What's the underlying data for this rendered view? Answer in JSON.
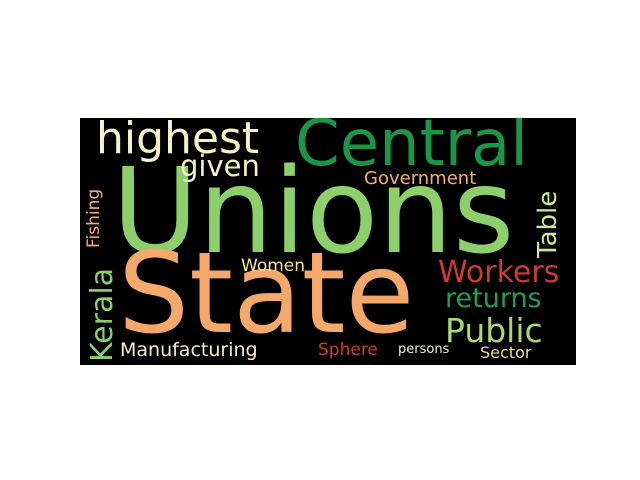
{
  "wordcloud": {
    "background": "#000000",
    "words": {
      "unions": {
        "text": "Unions",
        "color": "#8ccf6b"
      },
      "state": {
        "text": "State",
        "color": "#f4a96a"
      },
      "central": {
        "text": "Central",
        "color": "#1a9646"
      },
      "highest": {
        "text": "highest",
        "color": "#f5f3c1"
      },
      "workers": {
        "text": "Workers",
        "color": "#d33a2f"
      },
      "returns": {
        "text": "returns",
        "color": "#1f9e57"
      },
      "public": {
        "text": "Public",
        "color": "#a8d774"
      },
      "table": {
        "text": "Table",
        "color": "#c8e89a"
      },
      "kerala": {
        "text": "Kerala",
        "color": "#8ccf6b"
      },
      "given": {
        "text": "given",
        "color": "#f5f3c1"
      },
      "government": {
        "text": "Government",
        "color": "#f1b06d"
      },
      "women": {
        "text": "Women",
        "color": "#fbe39a"
      },
      "fishing": {
        "text": "Fishing",
        "color": "#f5b06d"
      },
      "manufacturing": {
        "text": "Manufacturing",
        "color": "#f8efc0"
      },
      "sphere": {
        "text": "Sphere",
        "color": "#d33a2f"
      },
      "persons": {
        "text": "persons",
        "color": "#f5f3c1"
      },
      "sector": {
        "text": "Sector",
        "color": "#f6dc95"
      }
    }
  }
}
